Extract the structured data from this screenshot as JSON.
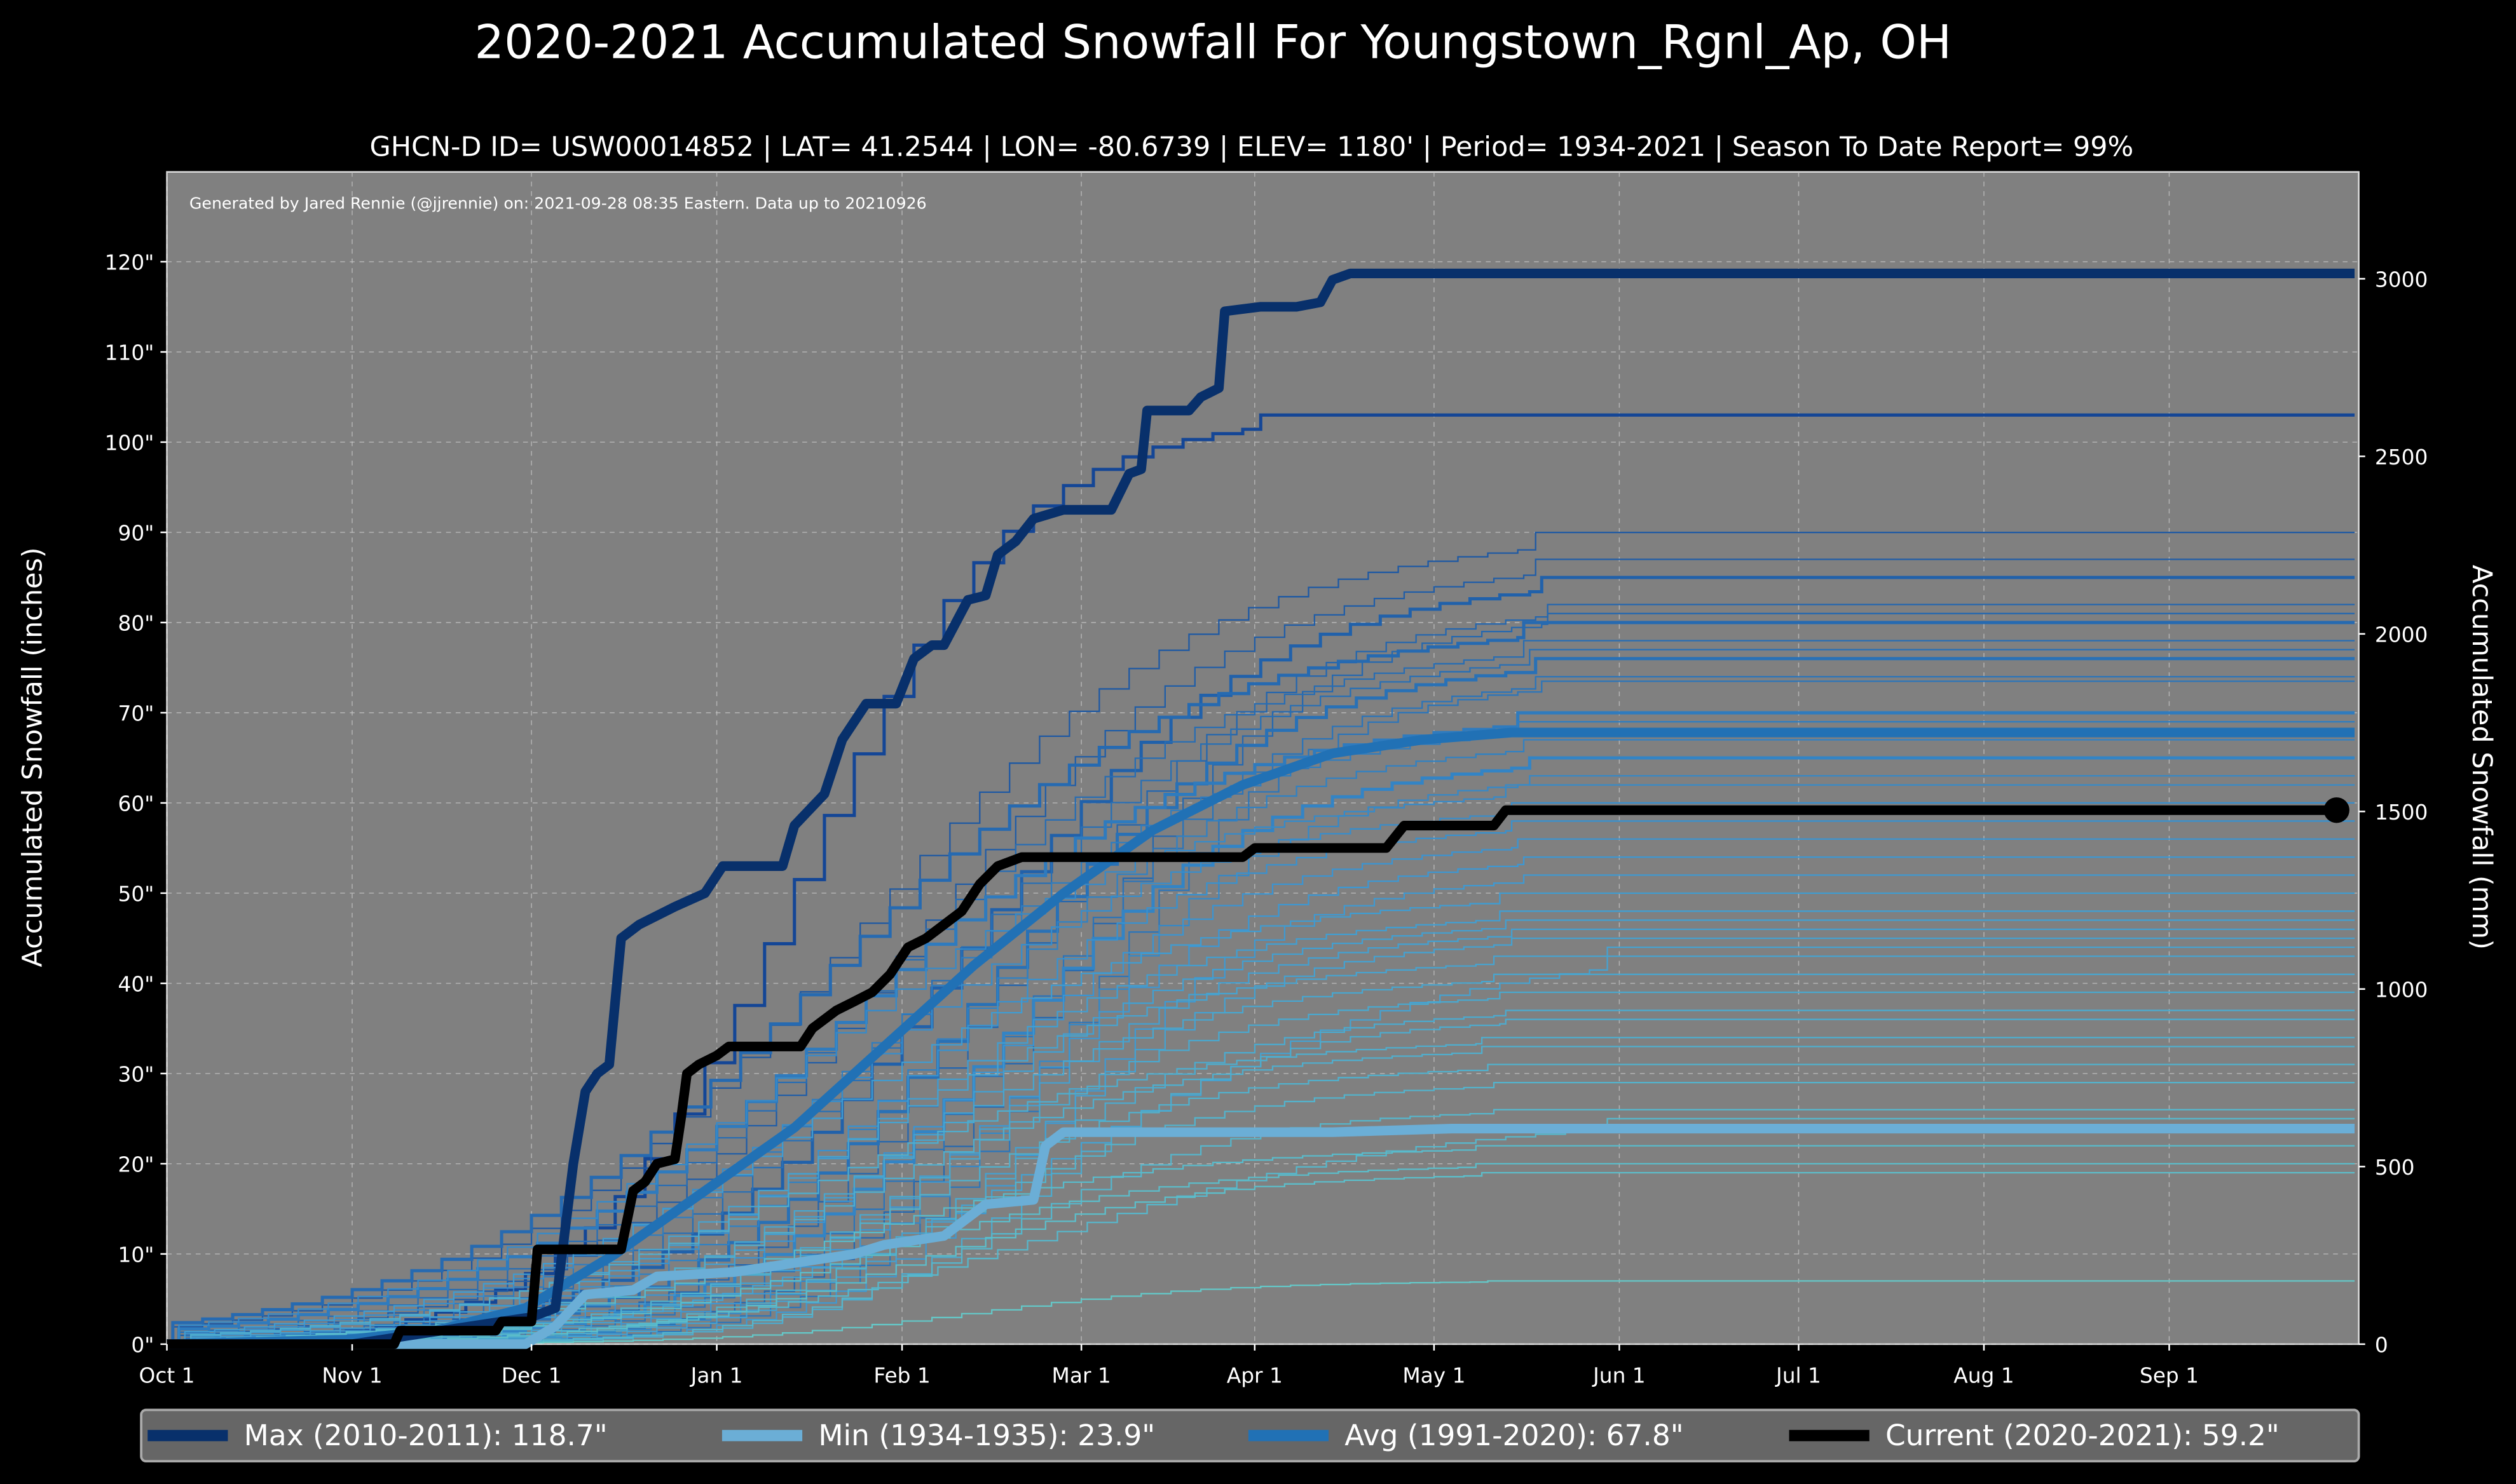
{
  "chart_data": {
    "type": "line",
    "title": "2020-2021 Accumulated Snowfall For Youngstown_Rgnl_Ap, OH",
    "subtitle": "GHCN-D ID= USW00014852 | LAT= 41.2544 | LON= -80.6739 | ELEV= 1180' | Period= 1934-2021 | Season To Date Report= 99%",
    "credit": "Generated by Jared Rennie (@jjrennie) on: 2021-09-28 08:35 Eastern. Data up to 20210926",
    "ylabel": "Accumulated Snowfall (inches)",
    "ylabel_right": "Accumulated Snowfall (mm)",
    "x_unit": "days since Oct 1",
    "xlim": [
      -6,
      366
    ],
    "ylim": [
      0,
      130
    ],
    "grid": true,
    "legend_position": "bottom",
    "x_ticks": [
      {
        "day": 0,
        "label": "Oct 1"
      },
      {
        "day": 31,
        "label": "Nov 1"
      },
      {
        "day": 61,
        "label": "Dec 1"
      },
      {
        "day": 92,
        "label": "Jan 1"
      },
      {
        "day": 123,
        "label": "Feb 1"
      },
      {
        "day": 153,
        "label": "Mar 1"
      },
      {
        "day": 182,
        "label": "Apr 1"
      },
      {
        "day": 212,
        "label": "May 1"
      },
      {
        "day": 243,
        "label": "Jun 1"
      },
      {
        "day": 273,
        "label": "Jul 1"
      },
      {
        "day": 304,
        "label": "Aug 1"
      },
      {
        "day": 335,
        "label": "Sep 1"
      }
    ],
    "y_ticks": [
      {
        "value": 0,
        "label": "0\""
      },
      {
        "value": 10,
        "label": "10\""
      },
      {
        "value": 20,
        "label": "20\""
      },
      {
        "value": 30,
        "label": "30\""
      },
      {
        "value": 40,
        "label": "40\""
      },
      {
        "value": 50,
        "label": "50\""
      },
      {
        "value": 60,
        "label": "60\""
      },
      {
        "value": 70,
        "label": "70\""
      },
      {
        "value": 80,
        "label": "80\""
      },
      {
        "value": 90,
        "label": "90\""
      },
      {
        "value": 100,
        "label": "100\""
      },
      {
        "value": 110,
        "label": "110\""
      },
      {
        "value": 120,
        "label": "120\""
      }
    ],
    "y_ticks_right_mm": [
      0,
      500,
      1000,
      1500,
      2000,
      2500,
      3000
    ],
    "series": [
      {
        "name": "Max (2010-2011):  118.7\"",
        "color": "#08306b",
        "width": 6,
        "points": [
          [
            0,
            0
          ],
          [
            31,
            0
          ],
          [
            61,
            3
          ],
          [
            65,
            4
          ],
          [
            68,
            20
          ],
          [
            70,
            28
          ],
          [
            72,
            30
          ],
          [
            74,
            31
          ],
          [
            76,
            45
          ],
          [
            79,
            46.5
          ],
          [
            85,
            48.5
          ],
          [
            90,
            50
          ],
          [
            93,
            53
          ],
          [
            103,
            53
          ],
          [
            105,
            57.5
          ],
          [
            110,
            61
          ],
          [
            113,
            67
          ],
          [
            117,
            71
          ],
          [
            122,
            71
          ],
          [
            125,
            76
          ],
          [
            128,
            77.5
          ],
          [
            130,
            77.5
          ],
          [
            134,
            82.5
          ],
          [
            137,
            83
          ],
          [
            139,
            87.5
          ],
          [
            142,
            89
          ],
          [
            145,
            91.5
          ],
          [
            150,
            92.5
          ],
          [
            158,
            92.5
          ],
          [
            161,
            96.5
          ],
          [
            163,
            97
          ],
          [
            164,
            103.5
          ],
          [
            171,
            103.5
          ],
          [
            173,
            105
          ],
          [
            176,
            106
          ],
          [
            177,
            114.5
          ],
          [
            183,
            115
          ],
          [
            189,
            115
          ],
          [
            193,
            115.5
          ],
          [
            195,
            118
          ],
          [
            198,
            118.7
          ],
          [
            366,
            118.7
          ]
        ]
      },
      {
        "name": "Min (1934-1935):   23.9\"",
        "color": "#6baed6",
        "width": 6,
        "points": [
          [
            0,
            0
          ],
          [
            60,
            0
          ],
          [
            65,
            2
          ],
          [
            70,
            5.5
          ],
          [
            78,
            6
          ],
          [
            82,
            7.5
          ],
          [
            95,
            8
          ],
          [
            105,
            9
          ],
          [
            110,
            9.5
          ],
          [
            115,
            10
          ],
          [
            120,
            11
          ],
          [
            130,
            12
          ],
          [
            137,
            15.5
          ],
          [
            145,
            16
          ],
          [
            147,
            22
          ],
          [
            150,
            23.5
          ],
          [
            195,
            23.5
          ],
          [
            215,
            23.9
          ],
          [
            366,
            23.9
          ]
        ]
      },
      {
        "name": "Avg (1991-2020):   67.8\"",
        "color": "#2171b5",
        "width": 6,
        "points": [
          [
            0,
            0
          ],
          [
            30,
            0.5
          ],
          [
            45,
            1.5
          ],
          [
            60,
            4
          ],
          [
            75,
            10
          ],
          [
            90,
            17
          ],
          [
            105,
            24
          ],
          [
            120,
            33
          ],
          [
            135,
            42
          ],
          [
            150,
            50
          ],
          [
            165,
            57
          ],
          [
            180,
            62
          ],
          [
            195,
            65.5
          ],
          [
            210,
            67
          ],
          [
            225,
            67.8
          ],
          [
            366,
            67.8
          ]
        ]
      },
      {
        "name": "Current (2020-2021):   59.2\"",
        "color": "#000000",
        "width": 6,
        "end_marker": true,
        "points": [
          [
            0,
            0
          ],
          [
            38,
            0
          ],
          [
            39,
            1.5
          ],
          [
            55,
            1.5
          ],
          [
            56,
            2.5
          ],
          [
            61,
            2.5
          ],
          [
            62,
            10.5
          ],
          [
            76,
            10.5
          ],
          [
            78,
            17
          ],
          [
            80,
            18
          ],
          [
            82,
            20
          ],
          [
            85,
            20.5
          ],
          [
            86,
            25
          ],
          [
            87,
            30
          ],
          [
            89,
            31
          ],
          [
            92,
            32
          ],
          [
            94,
            33
          ],
          [
            106,
            33
          ],
          [
            108,
            35
          ],
          [
            112,
            37
          ],
          [
            115,
            38
          ],
          [
            118,
            39
          ],
          [
            121,
            41
          ],
          [
            124,
            44
          ],
          [
            127,
            45
          ],
          [
            133,
            48
          ],
          [
            136,
            51
          ],
          [
            139,
            53
          ],
          [
            143,
            54
          ],
          [
            150,
            54
          ],
          [
            180,
            54
          ],
          [
            182,
            55
          ],
          [
            204,
            55
          ],
          [
            207,
            57.5
          ],
          [
            222,
            57.5
          ],
          [
            224,
            59.2
          ],
          [
            363,
            59.2
          ]
        ]
      }
    ],
    "other_season_totals": [
      103,
      90,
      87,
      85,
      82,
      81,
      80,
      78,
      77,
      76,
      74,
      73.5,
      70,
      69,
      67,
      65,
      63,
      62,
      60,
      58,
      56,
      54,
      52,
      50,
      48,
      47,
      46,
      45,
      44,
      43,
      41,
      39,
      37,
      36,
      34,
      33,
      31,
      29,
      26,
      25,
      22,
      20,
      19,
      7
    ]
  }
}
